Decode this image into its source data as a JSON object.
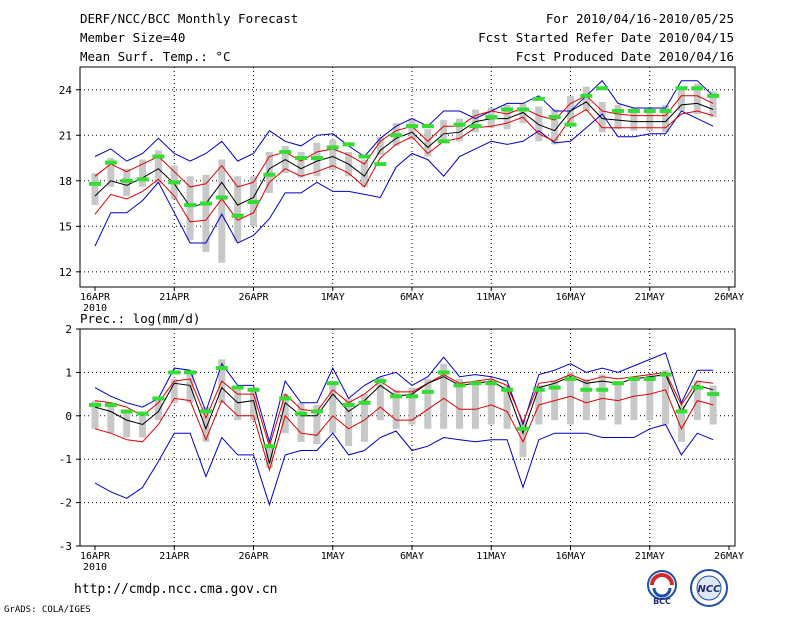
{
  "header": {
    "title": "DERF/NCC/BCC Monthly Forecast",
    "member_size": "Member Size=40",
    "variable1": "Mean Surf. Temp.: °C",
    "forecast_period": "For 2010/04/16-2010/05/25",
    "start_date": "Fcst Started Refer Date 2010/04/15",
    "produced_date": "Fcst Produced Date 2010/04/16"
  },
  "footer": {
    "url": "http://cmdp.ncc.cma.gov.cn",
    "credit": "GrADS: COLA/IGES",
    "logo1_text": "BCC",
    "logo2_text": "NCC"
  },
  "colors": {
    "envelope": "#0000c8",
    "spread": "#e00000",
    "mean": "#000000",
    "box": "#c8c8c8",
    "median": "#33dd33",
    "grid": "#000000"
  },
  "chart_data": [
    {
      "type": "line",
      "title": "Mean Surf. Temp.: °C",
      "x_ticks": [
        "16APR",
        "21APR",
        "26APR",
        "1MAY",
        "6MAY",
        "11MAY",
        "16MAY",
        "21MAY",
        "26MAY"
      ],
      "x_year_label": "2010",
      "x_range": [
        0,
        40
      ],
      "ylim": [
        11,
        25.5
      ],
      "y_ticks": [
        12,
        15,
        18,
        21,
        24
      ],
      "grid": true,
      "series": [
        {
          "name": "ensemble max",
          "values": [
            19.6,
            20.1,
            19.3,
            19.8,
            20.8,
            19.8,
            19.3,
            19.8,
            20.6,
            19.3,
            19.8,
            21.3,
            20.6,
            20.3,
            21.0,
            21.1,
            20.3,
            19.6,
            20.8,
            21.6,
            22.1,
            21.6,
            22.6,
            22.6,
            22.1,
            22.6,
            23.1,
            23.1,
            23.6,
            22.6,
            22.6,
            23.6,
            24.6,
            23.1,
            22.8,
            22.8,
            22.8,
            24.6,
            24.6,
            23.6
          ]
        },
        {
          "name": "ensemble min",
          "values": [
            13.7,
            15.9,
            15.9,
            16.7,
            17.9,
            15.9,
            13.9,
            13.9,
            15.8,
            13.9,
            14.4,
            15.5,
            17.2,
            17.2,
            17.9,
            17.3,
            17.3,
            17.1,
            16.9,
            18.9,
            19.8,
            19.4,
            18.3,
            19.6,
            20.1,
            20.6,
            20.4,
            20.6,
            21.3,
            20.5,
            20.6,
            21.5,
            22.4,
            20.9,
            20.9,
            21.1,
            21.1,
            22.6,
            22.1,
            21.6
          ]
        },
        {
          "name": "upper spread",
          "values": [
            18.3,
            19.1,
            18.6,
            19.1,
            19.6,
            18.6,
            17.6,
            17.8,
            19.0,
            17.6,
            17.9,
            19.6,
            19.9,
            19.3,
            19.9,
            20.1,
            19.7,
            19.1,
            20.6,
            21.3,
            21.6,
            20.6,
            21.6,
            21.6,
            22.3,
            22.6,
            22.4,
            22.8,
            22.3,
            22.0,
            23.1,
            23.6,
            22.6,
            22.4,
            22.3,
            22.3,
            22.3,
            23.6,
            23.6,
            23.1
          ]
        },
        {
          "name": "lower spread",
          "values": [
            15.8,
            17.1,
            16.8,
            17.3,
            18.1,
            17.0,
            15.3,
            15.4,
            16.8,
            15.4,
            15.9,
            17.9,
            18.8,
            18.3,
            18.6,
            19.0,
            18.5,
            17.6,
            19.5,
            20.4,
            20.9,
            19.8,
            20.6,
            20.8,
            21.5,
            21.6,
            21.8,
            22.2,
            21.1,
            20.6,
            22.1,
            22.7,
            21.5,
            21.5,
            21.5,
            21.5,
            21.5,
            22.4,
            22.6,
            22.3
          ]
        },
        {
          "name": "ensemble mean",
          "values": [
            17.0,
            18.0,
            17.7,
            18.2,
            18.8,
            17.8,
            16.3,
            16.5,
            17.9,
            16.4,
            16.9,
            18.8,
            19.4,
            18.8,
            19.3,
            19.6,
            19.1,
            18.3,
            20.0,
            20.8,
            21.2,
            20.2,
            21.1,
            21.2,
            21.9,
            22.1,
            22.1,
            22.5,
            21.7,
            21.3,
            22.6,
            23.2,
            22.1,
            22.0,
            21.9,
            21.9,
            21.9,
            23.0,
            23.1,
            22.7
          ]
        },
        {
          "name": "box top",
          "values": [
            18.5,
            19.5,
            18.8,
            19.4,
            20.0,
            19.0,
            18.3,
            18.4,
            19.4,
            18.3,
            18.3,
            19.9,
            20.3,
            19.9,
            20.5,
            20.7,
            19.9,
            19.4,
            20.9,
            21.8,
            22.1,
            21.4,
            22.0,
            22.1,
            22.7,
            22.8,
            23.0,
            23.1,
            22.9,
            22.7,
            23.6,
            24.2,
            23.2,
            23.0,
            22.8,
            22.8,
            23.0,
            24.2,
            24.4,
            23.9
          ]
        },
        {
          "name": "box bottom",
          "values": [
            16.4,
            17.6,
            17.0,
            17.6,
            17.8,
            16.8,
            14.1,
            13.3,
            12.6,
            14.0,
            15.0,
            17.2,
            18.5,
            18.2,
            18.3,
            18.7,
            18.3,
            17.6,
            19.7,
            20.3,
            20.7,
            19.6,
            20.6,
            20.6,
            21.2,
            21.5,
            21.4,
            21.8,
            20.6,
            20.4,
            21.8,
            22.6,
            21.2,
            21.4,
            21.3,
            21.3,
            21.2,
            22.6,
            22.4,
            22.2
          ]
        },
        {
          "name": "median",
          "values": [
            17.8,
            19.2,
            18.0,
            18.1,
            19.6,
            17.9,
            16.4,
            16.5,
            16.9,
            15.7,
            16.6,
            18.4,
            19.9,
            19.5,
            19.5,
            20.2,
            20.4,
            19.6,
            19.1,
            21.0,
            21.6,
            21.6,
            20.6,
            21.7,
            21.6,
            22.2,
            22.7,
            22.7,
            23.4,
            22.2,
            21.7,
            23.6,
            24.1,
            22.6,
            22.6,
            22.6,
            22.6,
            24.1,
            24.1,
            23.6
          ]
        }
      ]
    },
    {
      "type": "line",
      "title": "Prec.: log(mm/d)",
      "x_ticks": [
        "16APR",
        "21APR",
        "26APR",
        "1MAY",
        "6MAY",
        "11MAY",
        "16MAY",
        "21MAY",
        "26MAY"
      ],
      "x_year_label": "2010",
      "x_range": [
        0,
        40
      ],
      "ylim": [
        -3,
        2
      ],
      "y_ticks": [
        -3,
        -2,
        -1,
        0,
        1,
        2
      ],
      "grid": true,
      "series": [
        {
          "name": "ensemble max",
          "values": [
            0.65,
            0.45,
            0.3,
            0.2,
            0.4,
            1.1,
            1.05,
            0.1,
            1.2,
            0.7,
            0.7,
            -0.6,
            0.8,
            0.3,
            0.3,
            1.1,
            0.4,
            0.7,
            0.9,
            1.0,
            0.7,
            0.9,
            1.35,
            0.9,
            0.95,
            0.9,
            0.8,
            -0.2,
            0.95,
            1.05,
            1.2,
            1.0,
            1.1,
            1.0,
            1.15,
            1.3,
            1.45,
            0.3,
            1.05,
            1.05
          ]
        },
        {
          "name": "ensemble min",
          "values": [
            -1.55,
            -1.75,
            -1.9,
            -1.65,
            -1.05,
            -0.4,
            -0.4,
            -1.4,
            -0.5,
            -0.9,
            -0.9,
            -2.05,
            -0.9,
            -0.8,
            -0.8,
            -0.4,
            -0.9,
            -0.8,
            -0.5,
            -0.35,
            -0.8,
            -0.7,
            -0.5,
            -0.55,
            -0.6,
            -0.55,
            -0.55,
            -1.65,
            -0.55,
            -0.4,
            -0.4,
            -0.4,
            -0.5,
            -0.5,
            -0.5,
            -0.3,
            -0.2,
            -0.9,
            -0.4,
            -0.55
          ]
        },
        {
          "name": "upper spread",
          "values": [
            0.35,
            0.3,
            0.2,
            0.0,
            0.3,
            0.8,
            0.85,
            -0.05,
            0.8,
            0.5,
            0.5,
            -0.7,
            0.5,
            0.15,
            0.1,
            0.6,
            0.3,
            0.5,
            0.8,
            0.55,
            0.55,
            0.75,
            0.95,
            0.75,
            0.8,
            0.85,
            0.7,
            -0.15,
            0.75,
            0.8,
            0.95,
            0.8,
            0.9,
            0.85,
            0.9,
            0.95,
            1.0,
            0.25,
            0.8,
            0.75
          ]
        },
        {
          "name": "lower spread",
          "values": [
            -0.3,
            -0.4,
            -0.55,
            -0.6,
            -0.2,
            0.4,
            0.35,
            -0.55,
            0.35,
            0.0,
            0.0,
            -1.25,
            0.0,
            -0.4,
            -0.45,
            0.0,
            -0.3,
            -0.1,
            0.2,
            -0.1,
            -0.1,
            0.15,
            0.4,
            0.15,
            0.15,
            0.25,
            0.1,
            -0.6,
            0.25,
            0.35,
            0.45,
            0.3,
            0.4,
            0.35,
            0.45,
            0.5,
            0.6,
            -0.3,
            0.35,
            0.25
          ]
        },
        {
          "name": "ensemble mean",
          "values": [
            0.2,
            0.1,
            -0.1,
            -0.2,
            0.1,
            0.75,
            0.7,
            -0.3,
            0.65,
            0.3,
            0.35,
            -1.1,
            0.3,
            0.0,
            0.0,
            0.5,
            0.1,
            0.35,
            0.7,
            0.45,
            0.5,
            0.75,
            0.9,
            0.7,
            0.75,
            0.8,
            0.6,
            -0.4,
            0.65,
            0.75,
            0.9,
            0.75,
            0.8,
            0.75,
            0.85,
            0.9,
            0.95,
            0.1,
            0.7,
            0.6
          ]
        },
        {
          "name": "box top",
          "values": [
            0.35,
            0.3,
            0.1,
            0.1,
            0.4,
            0.85,
            1.0,
            0.2,
            1.3,
            0.6,
            0.65,
            -0.65,
            0.5,
            0.3,
            0.25,
            0.8,
            0.4,
            0.5,
            0.9,
            0.6,
            0.65,
            0.85,
            1.2,
            0.85,
            0.8,
            0.85,
            0.7,
            -0.1,
            0.7,
            0.8,
            1.0,
            0.85,
            0.95,
            0.8,
            0.9,
            0.95,
            1.05,
            0.25,
            0.8,
            0.7
          ]
        },
        {
          "name": "box bottom",
          "values": [
            -0.3,
            -0.4,
            -0.5,
            -0.5,
            -0.1,
            0.3,
            0.3,
            -0.6,
            0.3,
            -0.1,
            -0.1,
            -1.2,
            -0.4,
            -0.6,
            -0.65,
            -0.4,
            -0.7,
            -0.6,
            -0.1,
            -0.3,
            -0.2,
            -0.3,
            -0.3,
            -0.3,
            -0.3,
            -0.2,
            -0.3,
            -0.95,
            -0.2,
            -0.1,
            -0.2,
            -0.1,
            -0.1,
            -0.2,
            -0.1,
            -0.1,
            -0.2,
            -0.6,
            -0.1,
            -0.2
          ]
        },
        {
          "name": "median",
          "values": [
            0.25,
            0.25,
            0.1,
            0.05,
            0.4,
            1.0,
            1.0,
            0.1,
            1.1,
            0.65,
            0.6,
            -0.7,
            0.4,
            0.05,
            0.1,
            0.75,
            0.25,
            0.3,
            0.8,
            0.45,
            0.45,
            0.55,
            1.0,
            0.7,
            0.75,
            0.75,
            0.6,
            -0.3,
            0.6,
            0.65,
            0.85,
            0.6,
            0.6,
            0.75,
            0.85,
            0.85,
            0.95,
            0.1,
            0.65,
            0.5
          ]
        }
      ]
    }
  ]
}
